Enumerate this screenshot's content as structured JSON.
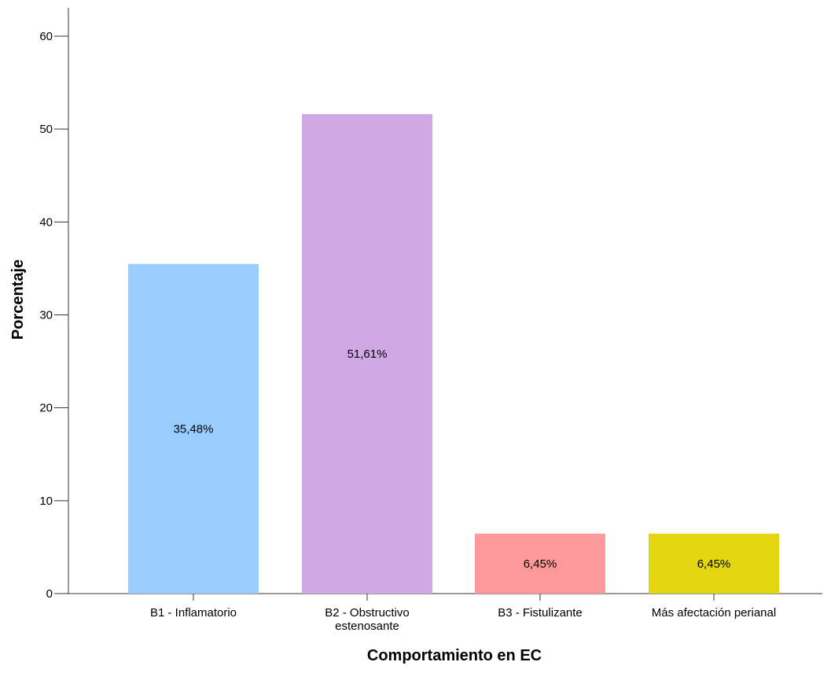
{
  "chart_data": {
    "type": "bar",
    "xlabel": "Comportamiento en EC",
    "ylabel": "Porcentaje",
    "ylim": [
      0,
      60
    ],
    "yticks": [
      0,
      10,
      20,
      30,
      40,
      50,
      60
    ],
    "grid": false,
    "categories": [
      [
        "B1 - Inflamatorio"
      ],
      [
        "B2 - Obstructivo",
        "estenosante"
      ],
      [
        "B3 - Fistulizante"
      ],
      [
        "Más afectación perianal"
      ]
    ],
    "values": [
      35.48,
      51.61,
      6.45,
      6.45
    ],
    "data_labels": [
      "35,48%",
      "51,61%",
      "6,45%",
      "6,45%"
    ],
    "colors": [
      "#99ccff",
      "#cfa8e4",
      "#ff9999",
      "#e2d512"
    ]
  }
}
